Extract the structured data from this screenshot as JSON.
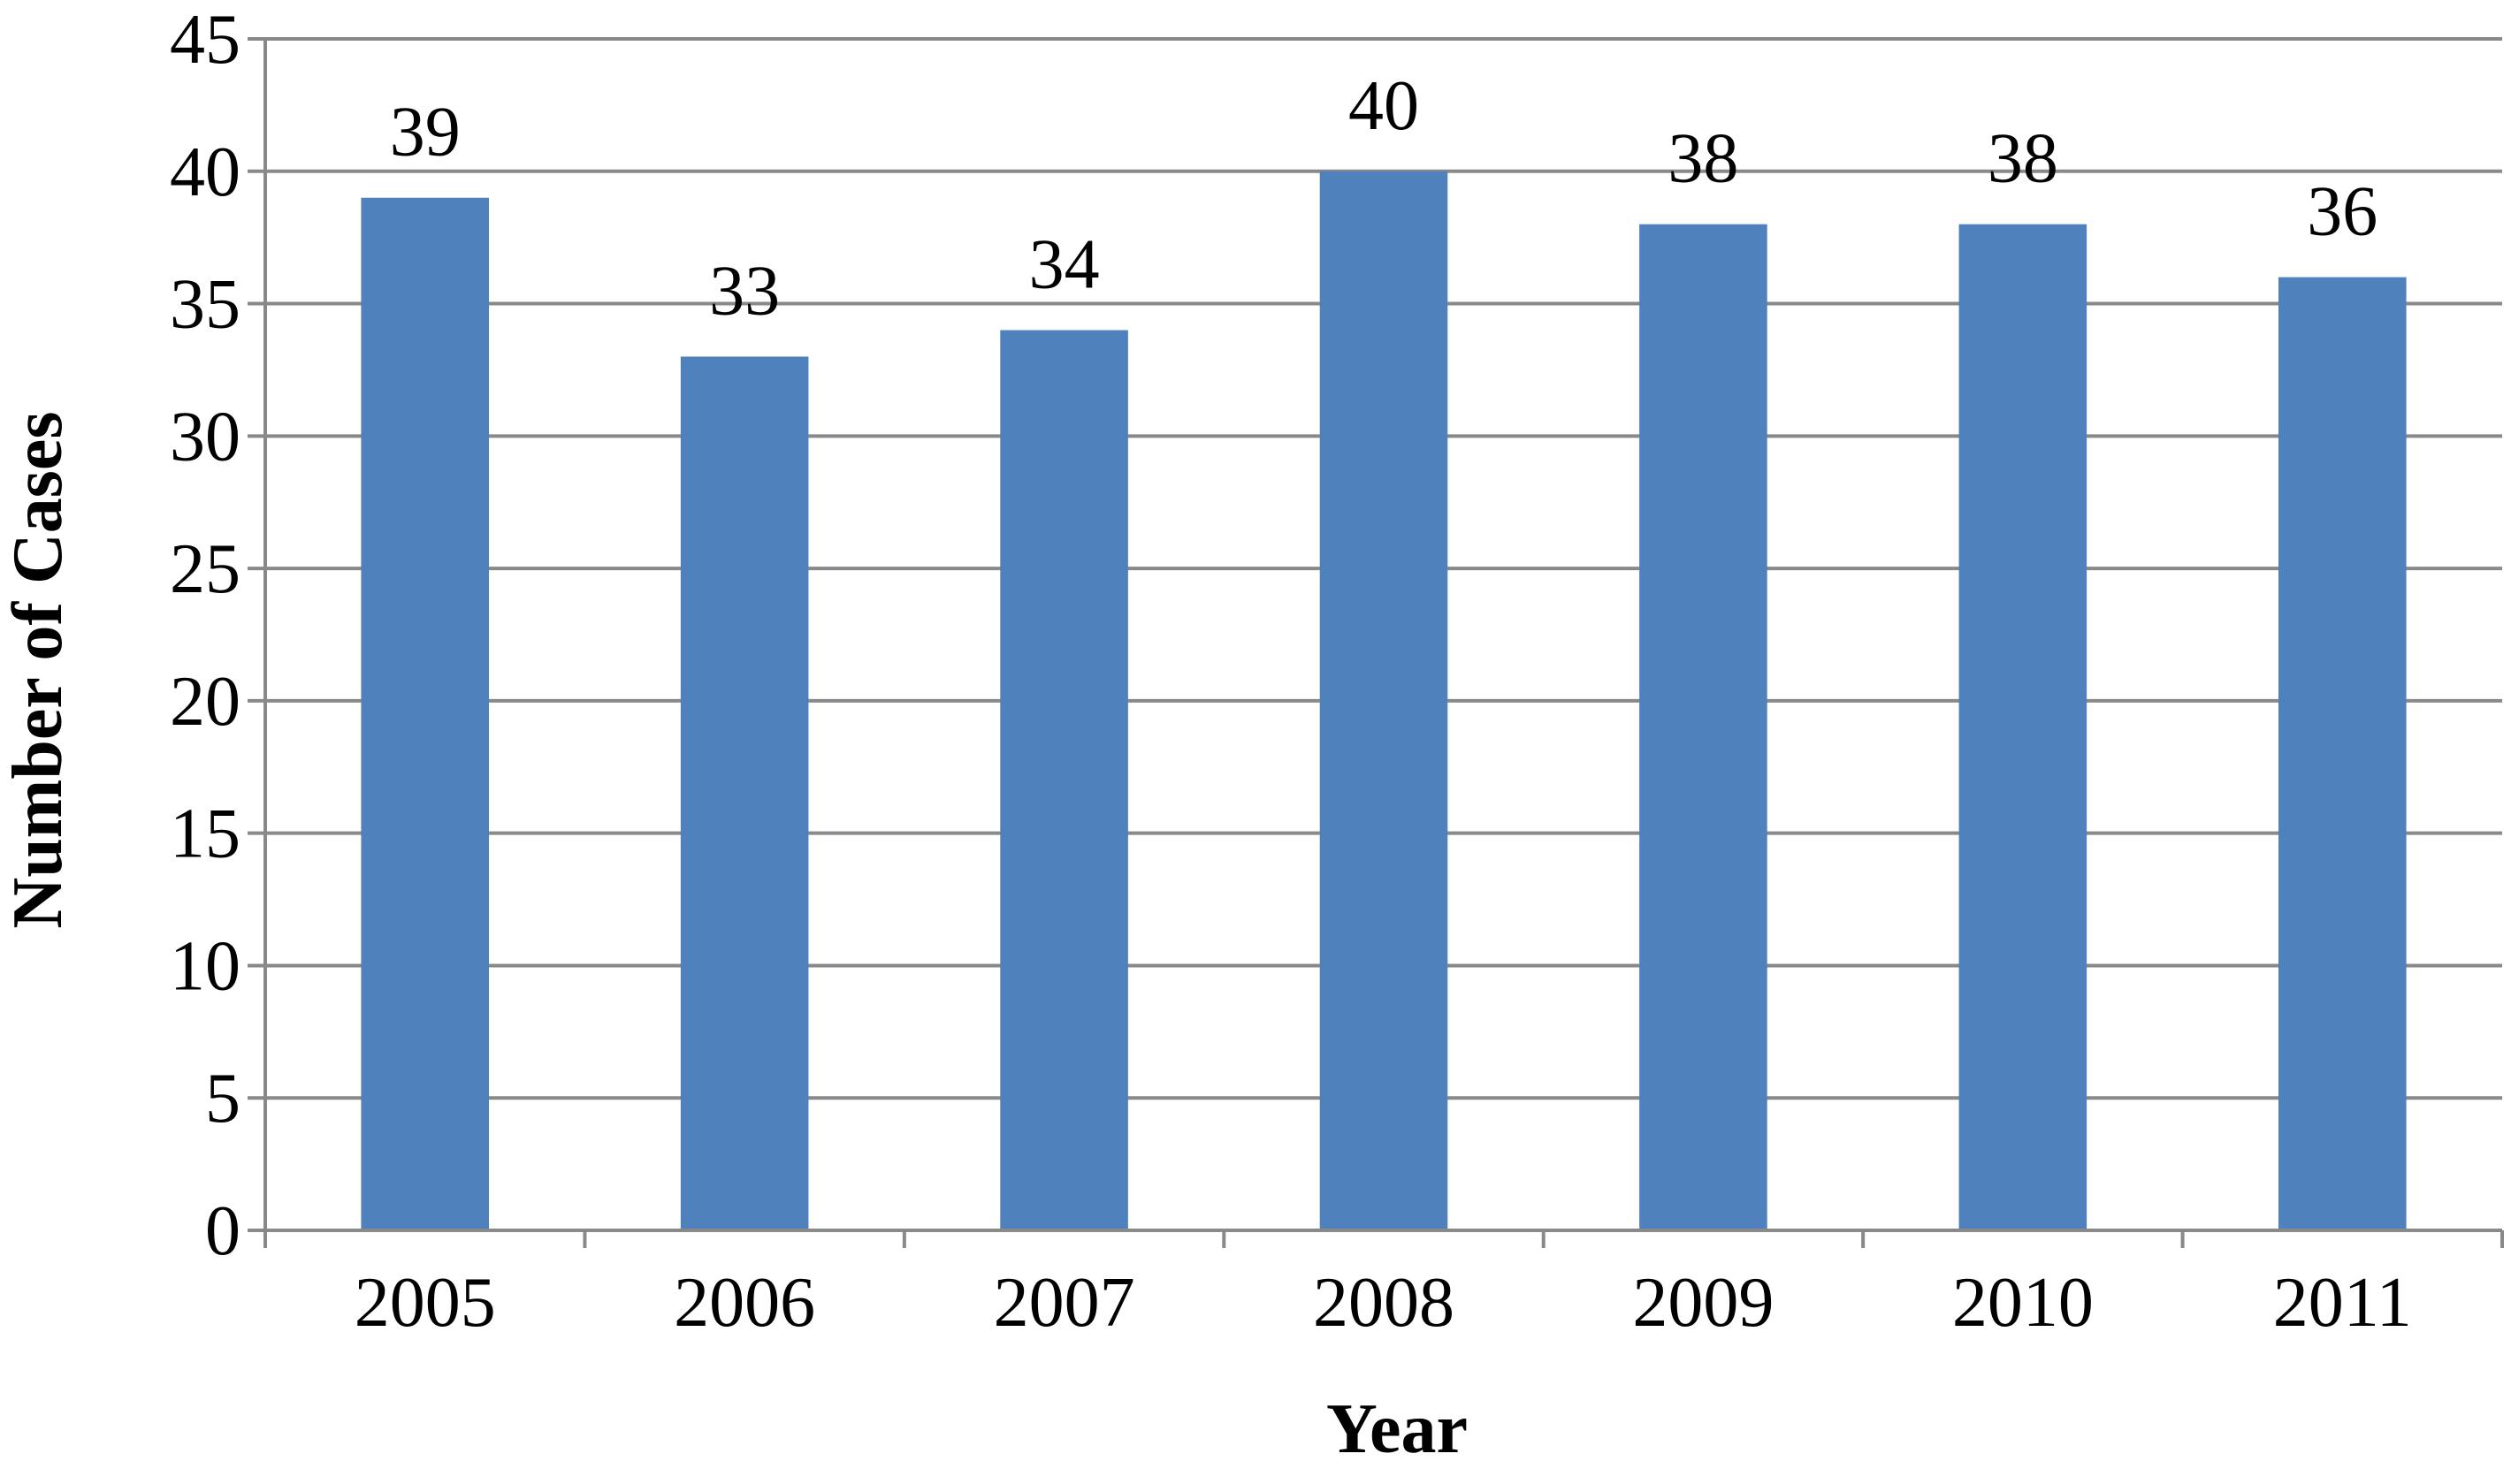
{
  "chart_data": {
    "type": "bar",
    "title": "",
    "xlabel": "Year",
    "ylabel": "Number of Cases",
    "categories": [
      "2005",
      "2006",
      "2007",
      "2008",
      "2009",
      "2010",
      "2011"
    ],
    "values": [
      39,
      33,
      34,
      40,
      38,
      38,
      36
    ],
    "data_labels": [
      "39",
      "33",
      "34",
      "40",
      "38",
      "38",
      "36"
    ],
    "ylim": [
      0,
      45
    ],
    "yticks": [
      "0",
      "5",
      "10",
      "15",
      "20",
      "25",
      "30",
      "35",
      "40",
      "45"
    ],
    "grid": true,
    "legend": "none",
    "bar_color": "#4F81BD",
    "grid_color": "#898989"
  }
}
